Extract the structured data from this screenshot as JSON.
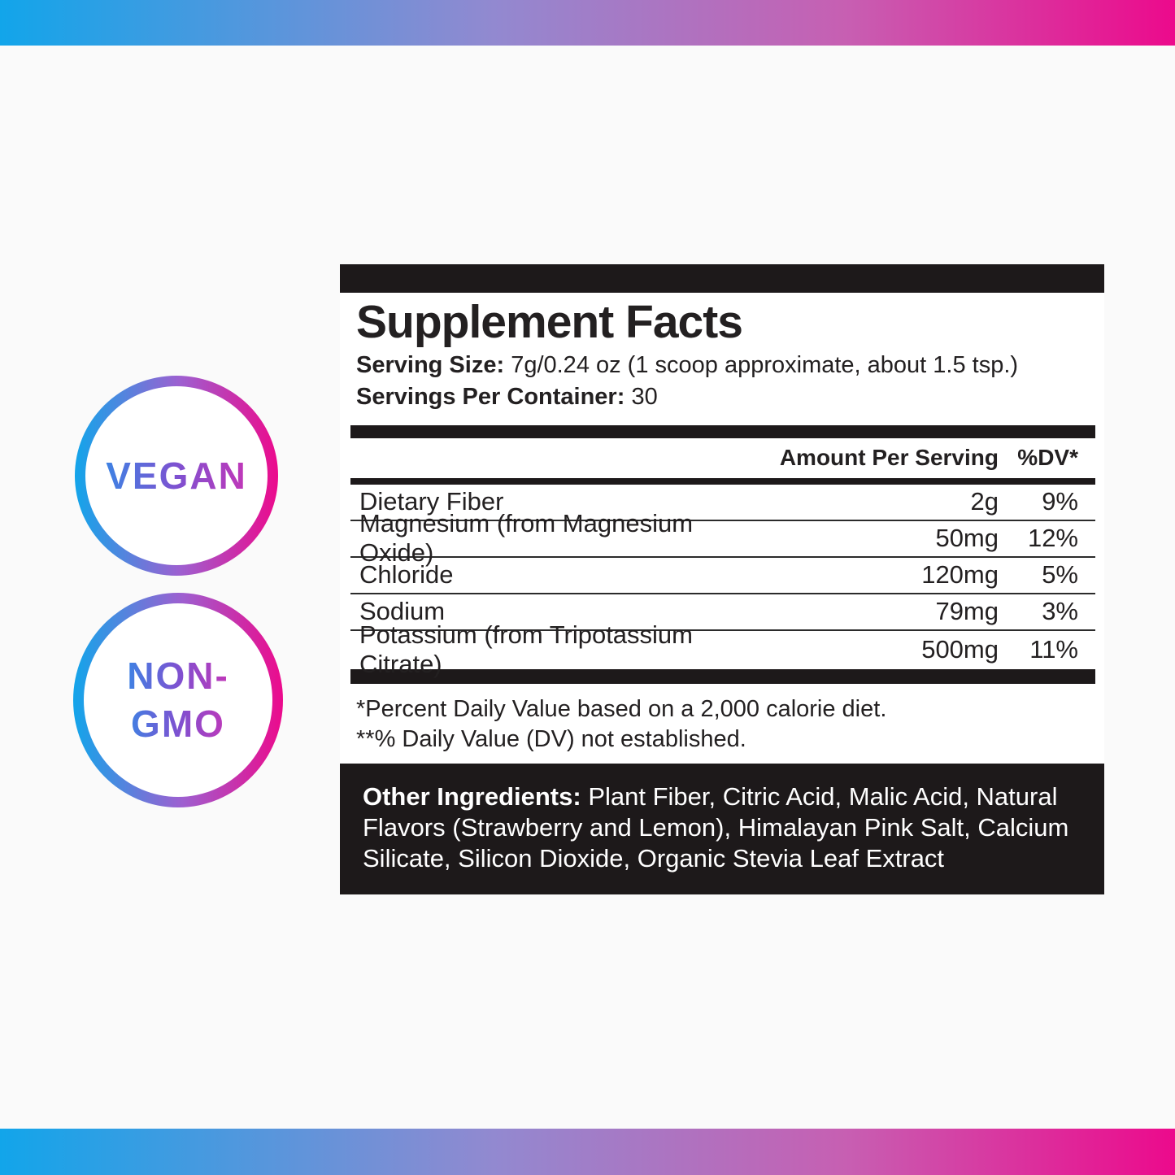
{
  "colors": {
    "gradient_blue": "#12A5EA",
    "gradient_purple": "#9289D0",
    "gradient_pink": "#EC0A8C",
    "panel_black": "#1D191A",
    "text_black": "#232021",
    "badge_text_blue": "#3E82E3",
    "badge_text_purple": "#8050D0",
    "badge_text_magenta": "#C237B8",
    "page_bg": "#FAFAFA"
  },
  "badges": {
    "vegan": {
      "label": "VEGAN"
    },
    "non_gmo": {
      "line1": "NON-",
      "line2": "GMO"
    }
  },
  "panel": {
    "title": "Supplement Facts",
    "serving_size_label": "Serving Size:",
    "serving_size_value": "7g/0.24 oz (1 scoop approximate, about 1.5 tsp.)",
    "servings_label": "Servings Per Container:",
    "servings_value": "30",
    "table": {
      "amount_header": "Amount Per Serving",
      "dv_header": "%DV*",
      "rows": [
        {
          "name": "Dietary Fiber",
          "amount": "2g",
          "dv": "9%"
        },
        {
          "name": "Magnesium (from Magnesium Oxide)",
          "amount": "50mg",
          "dv": "12%"
        },
        {
          "name": "Chloride",
          "amount": "120mg",
          "dv": "5%"
        },
        {
          "name": "Sodium",
          "amount": "79mg",
          "dv": "3%"
        },
        {
          "name": "Potassium (from Tripotassium Citrate)",
          "amount": "500mg",
          "dv": "11%"
        }
      ]
    },
    "footnotes": [
      "*Percent Daily Value based on a 2,000 calorie diet.",
      "**% Daily Value (DV) not established."
    ],
    "other_ingredients_label": "Other Ingredients:",
    "other_ingredients_text": "Plant Fiber, Citric Acid, Malic Acid, Natural Flavors (Strawberry and Lemon), Himalayan Pink Salt, Calcium Silicate, Silicon Dioxide, Organic Stevia Leaf Extract"
  }
}
